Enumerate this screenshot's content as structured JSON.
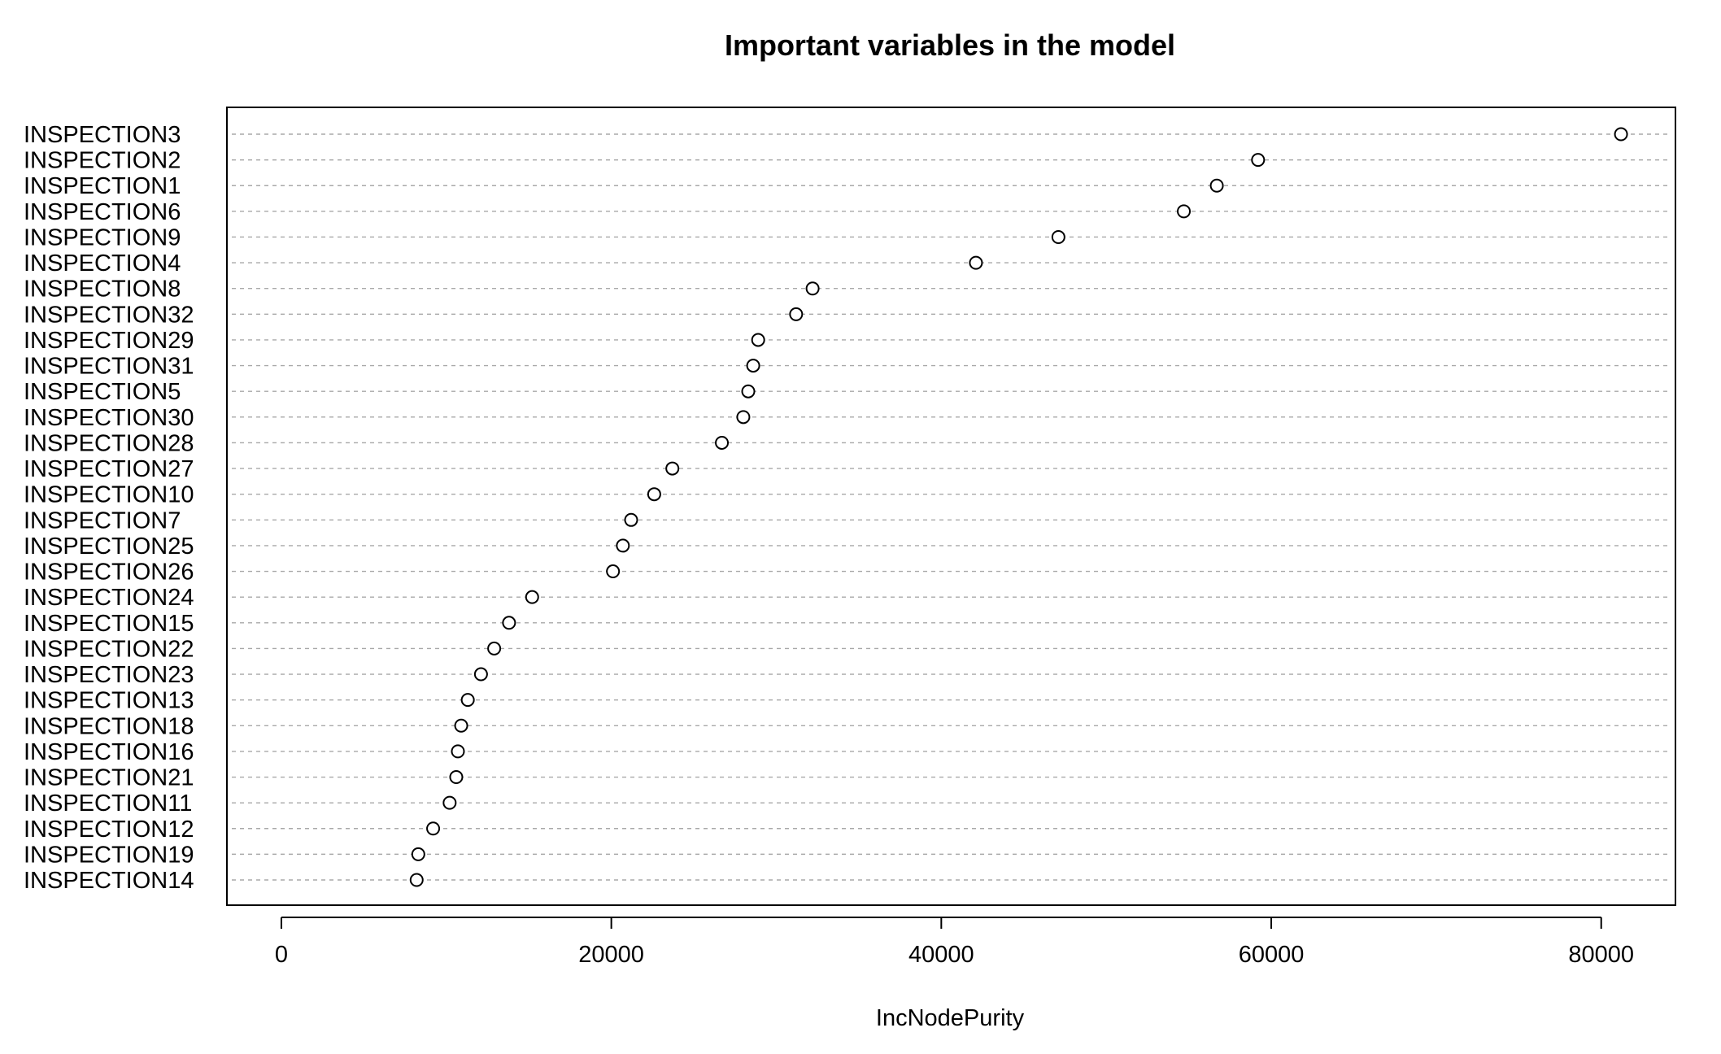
{
  "chart_data": {
    "type": "scatter",
    "title": "Important variables in the model",
    "xlabel": "IncNodePurity",
    "ylabel": "",
    "xlim": [
      -3300,
      84500
    ],
    "xticks": [
      0,
      20000,
      40000,
      60000,
      80000
    ],
    "grid": "horizontal dotted",
    "categories": [
      "INSPECTION3",
      "INSPECTION2",
      "INSPECTION1",
      "INSPECTION6",
      "INSPECTION9",
      "INSPECTION4",
      "INSPECTION8",
      "INSPECTION32",
      "INSPECTION29",
      "INSPECTION31",
      "INSPECTION5",
      "INSPECTION30",
      "INSPECTION28",
      "INSPECTION27",
      "INSPECTION10",
      "INSPECTION7",
      "INSPECTION25",
      "INSPECTION26",
      "INSPECTION24",
      "INSPECTION15",
      "INSPECTION22",
      "INSPECTION23",
      "INSPECTION13",
      "INSPECTION18",
      "INSPECTION16",
      "INSPECTION21",
      "INSPECTION11",
      "INSPECTION12",
      "INSPECTION19",
      "INSPECTION14"
    ],
    "values": [
      81200,
      59200,
      56700,
      54700,
      47100,
      42100,
      32200,
      31200,
      28900,
      28600,
      28300,
      28000,
      26700,
      23700,
      22600,
      21200,
      20700,
      20100,
      15200,
      13800,
      12900,
      12100,
      11300,
      10900,
      10700,
      10600,
      10200,
      9200,
      8300,
      8200
    ]
  }
}
